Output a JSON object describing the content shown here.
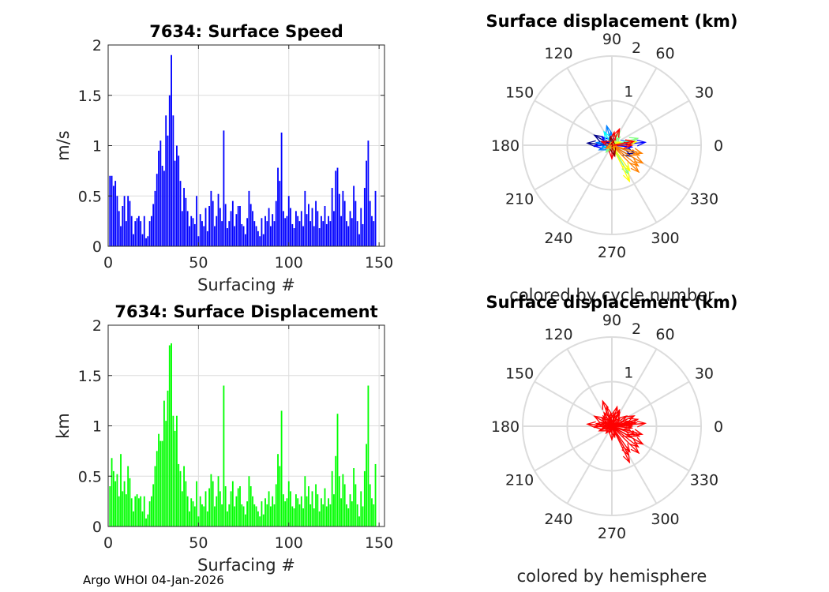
{
  "footer": "Argo WHOI 04-Jan-2026",
  "colors": {
    "speed_bars": "#0000ff",
    "displacement_bars": "#00ff00",
    "hemisphere_arrows": "#ff0000",
    "grid": "#dcdcdc",
    "axis": "#262626"
  },
  "chart_data": [
    {
      "type": "bar",
      "title": "7634: Surface Speed",
      "xlabel": "Surfacing #",
      "ylabel": "m/s",
      "xlim": [
        0,
        153
      ],
      "ylim": [
        0,
        2
      ],
      "xticks": [
        "0",
        "50",
        "100",
        "150"
      ],
      "yticks": [
        "0",
        "0.5",
        "1",
        "1.5",
        "2"
      ],
      "x_start": 1,
      "values": [
        0.7,
        0.7,
        0.6,
        0.65,
        0.5,
        0.35,
        0.2,
        0.4,
        0.5,
        0.25,
        0.5,
        0.45,
        0.3,
        0.12,
        0.25,
        0.28,
        0.3,
        0.25,
        0.12,
        0.3,
        0.08,
        0.1,
        0.25,
        0.3,
        0.42,
        0.55,
        0.72,
        0.95,
        1.05,
        0.8,
        0.75,
        1.3,
        1.1,
        1.5,
        1.9,
        1.3,
        0.85,
        1.0,
        0.9,
        0.65,
        0.35,
        0.58,
        0.48,
        0.35,
        0.2,
        0.3,
        0.28,
        0.22,
        0.5,
        0.1,
        0.32,
        0.25,
        0.2,
        0.38,
        0.15,
        0.4,
        0.55,
        0.45,
        0.2,
        0.3,
        0.52,
        0.38,
        0.25,
        1.15,
        0.42,
        0.18,
        0.25,
        0.35,
        0.45,
        0.2,
        0.32,
        0.4,
        0.4,
        0.22,
        0.2,
        0.12,
        0.28,
        0.55,
        0.42,
        0.35,
        0.25,
        0.2,
        0.15,
        0.1,
        0.28,
        0.12,
        0.3,
        0.25,
        0.38,
        0.2,
        0.32,
        0.25,
        0.45,
        0.78,
        0.65,
        1.13,
        0.35,
        0.28,
        0.3,
        0.5,
        0.38,
        0.22,
        0.18,
        0.35,
        0.3,
        0.25,
        0.35,
        0.2,
        0.55,
        0.32,
        0.42,
        0.25,
        0.38,
        0.2,
        0.45,
        0.35,
        0.18,
        0.3,
        0.25,
        0.4,
        0.22,
        0.3,
        0.25,
        0.58,
        0.35,
        0.75,
        0.78,
        0.52,
        0.3,
        0.55,
        0.45,
        0.25,
        0.2,
        0.35,
        0.28,
        0.6,
        0.45,
        0.25,
        0.12,
        0.38,
        0.22,
        0.58,
        0.85,
        1.05,
        0.45,
        0.3,
        0.25,
        0.55
      ],
      "bar_color": "#0000ff"
    },
    {
      "type": "polar-quiver",
      "title": "Surface displacement (km)",
      "caption": "colored by cycle number",
      "angle_labels": [
        "0",
        "30",
        "60",
        "90",
        "120",
        "150",
        "180",
        "210",
        "240",
        "270",
        "300",
        "330"
      ],
      "radius_labels": [
        "1",
        "2"
      ],
      "rlim": [
        0,
        2
      ],
      "colormap": [
        "#00008b",
        "#0000ff",
        "#0080ff",
        "#00ffff",
        "#80ff80",
        "#ffff00",
        "#ff8000",
        "#ff0000",
        "#8b0000"
      ],
      "vectors": [
        {
          "angle": 5,
          "r": 0.75,
          "c": 0.1
        },
        {
          "angle": 12,
          "r": 0.4,
          "c": 0.2
        },
        {
          "angle": 355,
          "r": 0.45,
          "c": 0.15
        },
        {
          "angle": 340,
          "r": 0.55,
          "c": 0.05
        },
        {
          "angle": 330,
          "r": 0.5,
          "c": 0.0
        },
        {
          "angle": 175,
          "r": 0.55,
          "c": 0.05
        },
        {
          "angle": 182,
          "r": 0.4,
          "c": 0.1
        },
        {
          "angle": 170,
          "r": 0.35,
          "c": 0.2
        },
        {
          "angle": 150,
          "r": 0.45,
          "c": 0.0
        },
        {
          "angle": 140,
          "r": 0.3,
          "c": 0.15
        },
        {
          "angle": 105,
          "r": 0.45,
          "c": 0.25
        },
        {
          "angle": 95,
          "r": 0.3,
          "c": 0.3
        },
        {
          "angle": 120,
          "r": 0.35,
          "c": 0.35
        },
        {
          "angle": 195,
          "r": 0.2,
          "c": 0.4
        },
        {
          "angle": 200,
          "r": 0.3,
          "c": 0.3
        },
        {
          "angle": 230,
          "r": 0.2,
          "c": 0.45
        },
        {
          "angle": 250,
          "r": 0.15,
          "c": 0.5
        },
        {
          "angle": 60,
          "r": 0.35,
          "c": 0.45
        },
        {
          "angle": 45,
          "r": 0.25,
          "c": 0.5
        },
        {
          "angle": 30,
          "r": 0.15,
          "c": 0.55
        },
        {
          "angle": 15,
          "r": 0.6,
          "c": 0.55
        },
        {
          "angle": 8,
          "r": 0.55,
          "c": 0.6
        },
        {
          "angle": 20,
          "r": 0.2,
          "c": 0.6
        },
        {
          "angle": 300,
          "r": 0.75,
          "c": 0.55
        },
        {
          "angle": 296,
          "r": 0.9,
          "c": 0.6
        },
        {
          "angle": 305,
          "r": 0.7,
          "c": 0.65
        },
        {
          "angle": 315,
          "r": 0.85,
          "c": 0.75
        },
        {
          "angle": 322,
          "r": 0.75,
          "c": 0.78
        },
        {
          "angle": 330,
          "r": 0.8,
          "c": 0.8
        },
        {
          "angle": 340,
          "r": 0.65,
          "c": 0.8
        },
        {
          "angle": 345,
          "r": 0.7,
          "c": 0.75
        },
        {
          "angle": 0,
          "r": 0.45,
          "c": 0.82
        },
        {
          "angle": 10,
          "r": 0.5,
          "c": 0.85
        },
        {
          "angle": 65,
          "r": 0.4,
          "c": 0.88
        },
        {
          "angle": 80,
          "r": 0.3,
          "c": 0.92
        },
        {
          "angle": 100,
          "r": 0.2,
          "c": 0.95
        },
        {
          "angle": 160,
          "r": 0.25,
          "c": 0.9
        },
        {
          "angle": 270,
          "r": 0.3,
          "c": 0.85
        },
        {
          "angle": 285,
          "r": 0.25,
          "c": 0.95
        },
        {
          "angle": 210,
          "r": 0.15,
          "c": 0.7
        }
      ]
    },
    {
      "type": "bar",
      "title": "7634: Surface Displacement",
      "xlabel": "Surfacing #",
      "ylabel": "km",
      "xlim": [
        0,
        153
      ],
      "ylim": [
        0,
        2
      ],
      "xticks": [
        "0",
        "50",
        "100",
        "150"
      ],
      "yticks": [
        "0",
        "0.5",
        "1",
        "1.5",
        "2"
      ],
      "x_start": 1,
      "values": [
        0.4,
        0.68,
        0.55,
        0.45,
        0.52,
        0.3,
        0.72,
        0.35,
        0.45,
        0.32,
        0.6,
        0.48,
        0.28,
        0.15,
        0.3,
        0.32,
        0.28,
        0.3,
        0.15,
        0.3,
        0.08,
        0.12,
        0.25,
        0.3,
        0.42,
        0.6,
        0.75,
        0.92,
        0.85,
        0.85,
        1.25,
        1.05,
        1.35,
        1.8,
        1.82,
        1.1,
        0.95,
        1.1,
        0.62,
        0.55,
        0.35,
        0.6,
        0.45,
        0.3,
        0.15,
        0.28,
        0.25,
        0.2,
        0.45,
        0.1,
        0.3,
        0.22,
        0.2,
        0.35,
        0.15,
        0.38,
        0.52,
        0.45,
        0.2,
        0.3,
        0.5,
        0.35,
        0.22,
        1.4,
        0.4,
        0.15,
        0.22,
        0.35,
        0.45,
        0.2,
        0.3,
        0.38,
        0.4,
        0.22,
        0.2,
        0.12,
        0.25,
        0.5,
        0.4,
        0.3,
        0.22,
        0.2,
        0.15,
        0.1,
        0.25,
        0.12,
        0.28,
        0.22,
        0.35,
        0.2,
        0.3,
        0.22,
        0.42,
        0.72,
        0.6,
        1.15,
        0.32,
        0.25,
        0.28,
        0.45,
        0.35,
        0.2,
        0.18,
        0.32,
        0.28,
        0.22,
        0.3,
        0.18,
        0.5,
        0.3,
        0.4,
        0.22,
        0.35,
        0.18,
        0.42,
        0.32,
        0.15,
        0.28,
        0.22,
        0.38,
        0.2,
        0.28,
        0.22,
        0.55,
        0.32,
        0.7,
        1.12,
        0.5,
        0.28,
        0.52,
        0.42,
        0.22,
        0.18,
        0.32,
        0.25,
        0.58,
        0.42,
        0.22,
        0.1,
        0.35,
        0.2,
        0.55,
        0.82,
        1.4,
        0.42,
        0.28,
        0.22,
        0.62
      ],
      "bar_color": "#00ff00"
    },
    {
      "type": "polar-quiver",
      "title": "Surface displacement (km)",
      "caption": "colored by hemisphere",
      "angle_labels": [
        "0",
        "30",
        "60",
        "90",
        "120",
        "150",
        "180",
        "210",
        "240",
        "270",
        "300",
        "330"
      ],
      "radius_labels": [
        "1",
        "2"
      ],
      "rlim": [
        0,
        2
      ],
      "arrow_color": "#ff0000",
      "vectors": [
        {
          "angle": 5,
          "r": 0.75
        },
        {
          "angle": 12,
          "r": 0.4
        },
        {
          "angle": 355,
          "r": 0.45
        },
        {
          "angle": 340,
          "r": 0.55
        },
        {
          "angle": 330,
          "r": 0.5
        },
        {
          "angle": 175,
          "r": 0.55
        },
        {
          "angle": 182,
          "r": 0.4
        },
        {
          "angle": 170,
          "r": 0.35
        },
        {
          "angle": 150,
          "r": 0.45
        },
        {
          "angle": 140,
          "r": 0.3
        },
        {
          "angle": 105,
          "r": 0.45
        },
        {
          "angle": 95,
          "r": 0.3
        },
        {
          "angle": 120,
          "r": 0.35
        },
        {
          "angle": 195,
          "r": 0.2
        },
        {
          "angle": 200,
          "r": 0.3
        },
        {
          "angle": 230,
          "r": 0.2
        },
        {
          "angle": 250,
          "r": 0.15
        },
        {
          "angle": 60,
          "r": 0.35
        },
        {
          "angle": 45,
          "r": 0.25
        },
        {
          "angle": 30,
          "r": 0.15
        },
        {
          "angle": 15,
          "r": 0.6
        },
        {
          "angle": 8,
          "r": 0.55
        },
        {
          "angle": 20,
          "r": 0.2
        },
        {
          "angle": 300,
          "r": 0.75
        },
        {
          "angle": 296,
          "r": 0.9
        },
        {
          "angle": 305,
          "r": 0.7
        },
        {
          "angle": 315,
          "r": 0.85
        },
        {
          "angle": 322,
          "r": 0.75
        },
        {
          "angle": 330,
          "r": 0.8
        },
        {
          "angle": 340,
          "r": 0.65
        },
        {
          "angle": 345,
          "r": 0.7
        },
        {
          "angle": 0,
          "r": 0.45
        },
        {
          "angle": 10,
          "r": 0.5
        },
        {
          "angle": 65,
          "r": 0.4
        },
        {
          "angle": 80,
          "r": 0.3
        },
        {
          "angle": 100,
          "r": 0.2
        },
        {
          "angle": 160,
          "r": 0.25
        },
        {
          "angle": 270,
          "r": 0.3
        },
        {
          "angle": 285,
          "r": 0.25
        },
        {
          "angle": 210,
          "r": 0.15
        },
        {
          "angle": 25,
          "r": 0.55
        },
        {
          "angle": 35,
          "r": 0.4
        },
        {
          "angle": 75,
          "r": 0.45
        },
        {
          "angle": 110,
          "r": 0.6
        },
        {
          "angle": 130,
          "r": 0.3
        }
      ]
    }
  ]
}
